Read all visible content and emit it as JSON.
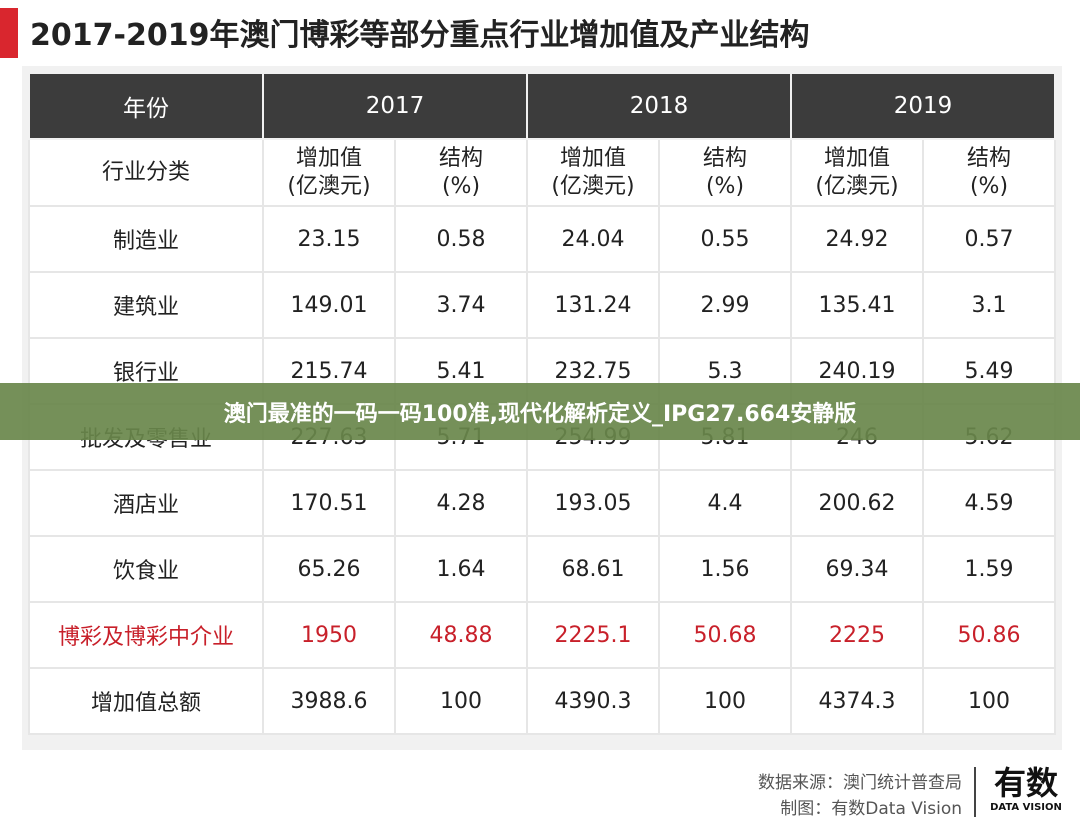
{
  "title": "2017-2019年澳门博彩等部分重点行业增加值及产业结构",
  "header": {
    "year_label": "年份",
    "years": [
      "2017",
      "2018",
      "2019"
    ]
  },
  "subheader": {
    "category_label": "行业分类",
    "value_label": "增加值\n(亿澳元)",
    "share_label": "结构\n(%)"
  },
  "rows": [
    {
      "name": "制造业",
      "v": [
        "23.15",
        "0.58",
        "24.04",
        "0.55",
        "24.92",
        "0.57"
      ]
    },
    {
      "name": "建筑业",
      "v": [
        "149.01",
        "3.74",
        "131.24",
        "2.99",
        "135.41",
        "3.1"
      ]
    },
    {
      "name": "银行业",
      "v": [
        "215.74",
        "5.41",
        "232.75",
        "5.3",
        "240.19",
        "5.49"
      ]
    },
    {
      "name": "批发及零售业",
      "v": [
        "227.63",
        "5.71",
        "254.99",
        "5.81",
        "246",
        "5.62"
      ]
    },
    {
      "name": "酒店业",
      "v": [
        "170.51",
        "4.28",
        "193.05",
        "4.4",
        "200.62",
        "4.59"
      ]
    },
    {
      "name": "饮食业",
      "v": [
        "65.26",
        "1.64",
        "68.61",
        "1.56",
        "69.34",
        "1.59"
      ]
    },
    {
      "name": "博彩及博彩中介业",
      "v": [
        "1950",
        "48.88",
        "2225.1",
        "50.68",
        "2225",
        "50.86"
      ],
      "highlight": true
    },
    {
      "name": "增加值总额",
      "v": [
        "3988.6",
        "100",
        "4390.3",
        "100",
        "4374.3",
        "100"
      ]
    }
  ],
  "banner": "澳门最准的一码一码100准,现代化解析定义_IPG27.664安静版",
  "footer": {
    "source": "数据来源：澳门统计普查局",
    "made_by": "制图：有数Data Vision",
    "logo_main": "有数",
    "logo_sub": "DATA VISION"
  },
  "colors": {
    "accent": "#d9262e",
    "header_bg": "#3c3c3c",
    "highlight_text": "#c8202a",
    "banner_bg": "#69874b"
  }
}
